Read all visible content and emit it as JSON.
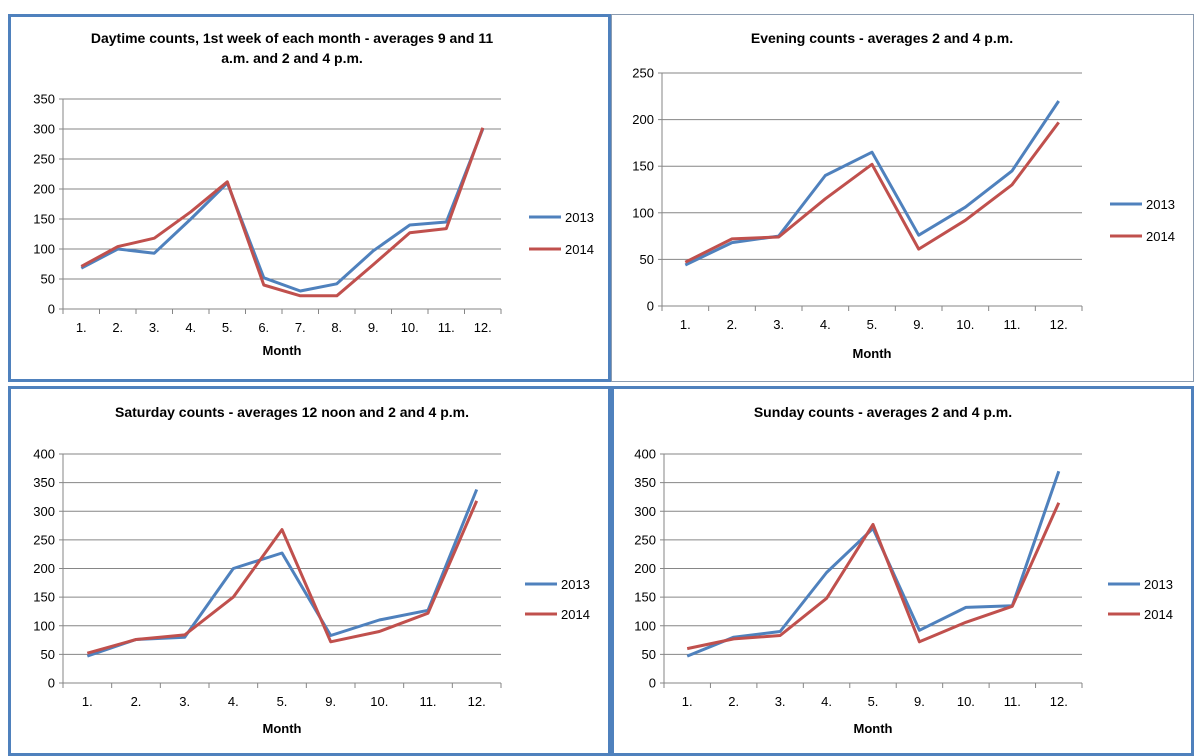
{
  "colors": {
    "series_2013": "#4f81bd",
    "series_2014": "#c0504d",
    "grid": "#868686",
    "border": "#4f81bd"
  },
  "chart_data": [
    {
      "type": "line",
      "title": [
        "Daytime counts, 1st week of each month - averages 9 and 11",
        "a.m. and 2 and 4 p.m."
      ],
      "xlabel": "Month",
      "ylabel": "",
      "categories": [
        "1.",
        "2.",
        "3.",
        "4.",
        "5.",
        "6.",
        "7.",
        "8.",
        "9.",
        "10.",
        "11.",
        "12."
      ],
      "ylim": [
        0,
        350
      ],
      "yticks": [
        "0",
        "50",
        "100",
        "150",
        "200",
        "250",
        "300",
        "350"
      ],
      "grid": true,
      "legend": "right",
      "series": [
        {
          "name": "2013",
          "values": [
            68,
            100,
            93,
            150,
            210,
            52,
            30,
            42,
            97,
            140,
            145,
            300
          ]
        },
        {
          "name": "2014",
          "values": [
            71,
            104,
            118,
            162,
            212,
            40,
            22,
            22,
            74,
            127,
            134,
            302
          ]
        }
      ]
    },
    {
      "type": "line",
      "title": [
        "Evening counts - averages 2 and 4 p.m."
      ],
      "xlabel": "Month",
      "ylabel": "",
      "categories": [
        "1.",
        "2.",
        "3.",
        "4.",
        "5.",
        "9.",
        "10.",
        "11.",
        "12."
      ],
      "ylim": [
        0,
        250
      ],
      "yticks": [
        "0",
        "50",
        "100",
        "150",
        "200",
        "250"
      ],
      "grid": true,
      "legend": "right",
      "series": [
        {
          "name": "2013",
          "values": [
            44,
            68,
            75,
            140,
            165,
            76,
            106,
            145,
            220
          ]
        },
        {
          "name": "2014",
          "values": [
            47,
            72,
            74,
            115,
            152,
            61,
            92,
            130,
            197
          ]
        }
      ]
    },
    {
      "type": "line",
      "title": [
        "Saturday counts - averages  12 noon and 2 and 4 p.m."
      ],
      "xlabel": "Month",
      "ylabel": "",
      "categories": [
        "1.",
        "2.",
        "3.",
        "4.",
        "5.",
        "9.",
        "10.",
        "11.",
        "12."
      ],
      "ylim": [
        0,
        400
      ],
      "yticks": [
        "0",
        "50",
        "100",
        "150",
        "200",
        "250",
        "300",
        "350",
        "400"
      ],
      "grid": true,
      "legend": "right",
      "series": [
        {
          "name": "2013",
          "values": [
            47,
            76,
            80,
            200,
            227,
            83,
            110,
            127,
            338
          ]
        },
        {
          "name": "2014",
          "values": [
            52,
            76,
            84,
            150,
            268,
            72,
            90,
            122,
            318
          ]
        }
      ]
    },
    {
      "type": "line",
      "title": [
        "Sunday counts - averages 2 and 4 p.m."
      ],
      "xlabel": "Month",
      "ylabel": "",
      "categories": [
        "1.",
        "2.",
        "3.",
        "4.",
        "5.",
        "9.",
        "10.",
        "11.",
        "12."
      ],
      "ylim": [
        0,
        400
      ],
      "yticks": [
        "0",
        "50",
        "100",
        "150",
        "200",
        "250",
        "300",
        "350",
        "400"
      ],
      "grid": true,
      "legend": "right",
      "series": [
        {
          "name": "2013",
          "values": [
            47,
            80,
            90,
            193,
            270,
            92,
            132,
            135,
            370
          ]
        },
        {
          "name": "2014",
          "values": [
            60,
            77,
            83,
            148,
            277,
            72,
            106,
            134,
            315
          ]
        }
      ]
    }
  ]
}
